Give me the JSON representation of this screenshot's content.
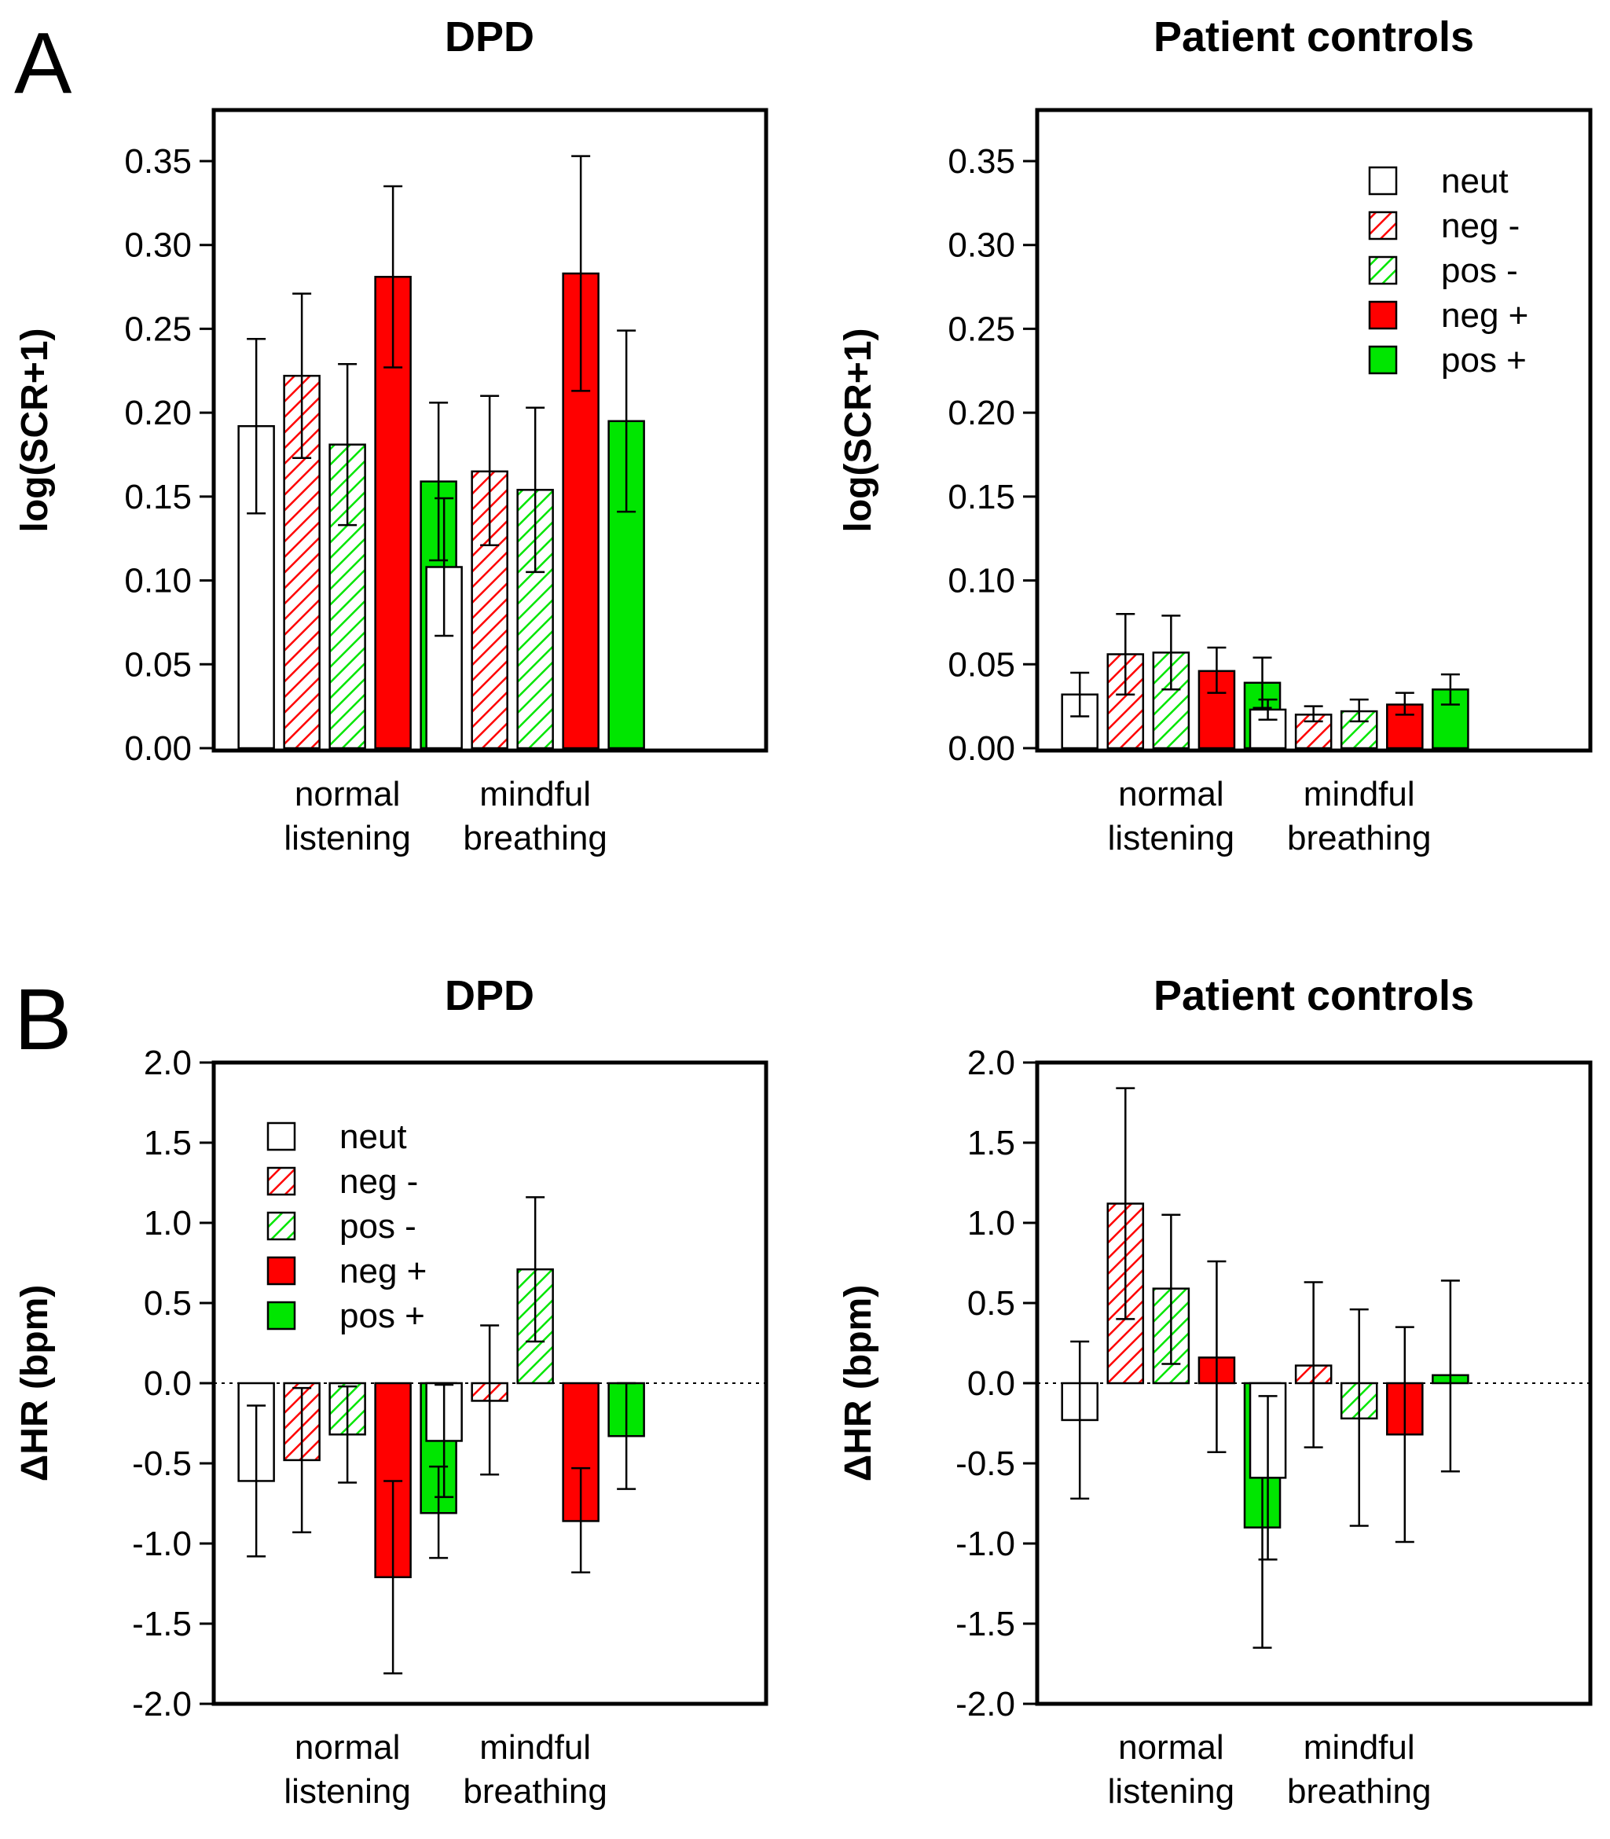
{
  "panel_letters": [
    "A",
    "B"
  ],
  "colors": {
    "neut": "#ffffff",
    "neg": "#ff0000",
    "pos": "#00e600",
    "axis": "#000000"
  },
  "legend": [
    {
      "key": "neut",
      "label": "neut",
      "fill": "plain"
    },
    {
      "key": "neg-",
      "label": "neg -",
      "fill": "hatch-red"
    },
    {
      "key": "pos-",
      "label": "pos -",
      "fill": "hatch-green"
    },
    {
      "key": "neg+",
      "label": "neg +",
      "fill": "solid-red"
    },
    {
      "key": "pos+",
      "label": "pos +",
      "fill": "solid-green"
    }
  ],
  "chart_data": [
    {
      "panel": "A",
      "type": "bar",
      "title": "DPD",
      "ylabel": "log(SCR+1)",
      "ylim": [
        0,
        0.38
      ],
      "yticks": [
        "0.00",
        "0.05",
        "0.10",
        "0.15",
        "0.20",
        "0.25",
        "0.30",
        "0.35"
      ],
      "yticks_values": [
        0,
        0.05,
        0.1,
        0.15,
        0.2,
        0.25,
        0.3,
        0.35
      ],
      "categories": [
        [
          "normal",
          "listening"
        ],
        [
          "mindful",
          "breathing"
        ]
      ],
      "legend": false,
      "series": [
        {
          "name": "neut",
          "values": [
            0.192,
            0.108
          ],
          "err_low": [
            0.14,
            0.067
          ],
          "err_high": [
            0.244,
            0.149
          ]
        },
        {
          "name": "neg -",
          "values": [
            0.222,
            0.165
          ],
          "err_low": [
            0.173,
            0.121
          ],
          "err_high": [
            0.271,
            0.21
          ]
        },
        {
          "name": "pos -",
          "values": [
            0.181,
            0.154
          ],
          "err_low": [
            0.133,
            0.105
          ],
          "err_high": [
            0.229,
            0.203
          ]
        },
        {
          "name": "neg +",
          "values": [
            0.281,
            0.283
          ],
          "err_low": [
            0.227,
            0.213
          ],
          "err_high": [
            0.335,
            0.353
          ]
        },
        {
          "name": "pos +",
          "values": [
            0.159,
            0.195
          ],
          "err_low": [
            0.112,
            0.141
          ],
          "err_high": [
            0.206,
            0.249
          ]
        }
      ]
    },
    {
      "panel": "A",
      "type": "bar",
      "title": "Patient controls",
      "ylabel": "log(SCR+1)",
      "ylim": [
        0,
        0.38
      ],
      "yticks": [
        "0.00",
        "0.05",
        "0.10",
        "0.15",
        "0.20",
        "0.25",
        "0.30",
        "0.35"
      ],
      "yticks_values": [
        0,
        0.05,
        0.1,
        0.15,
        0.2,
        0.25,
        0.3,
        0.35
      ],
      "categories": [
        [
          "normal",
          "listening"
        ],
        [
          "mindful",
          "breathing"
        ]
      ],
      "legend": true,
      "legend_position": "top-right",
      "series": [
        {
          "name": "neut",
          "values": [
            0.032,
            0.023
          ],
          "err_low": [
            0.019,
            0.017
          ],
          "err_high": [
            0.045,
            0.029
          ]
        },
        {
          "name": "neg -",
          "values": [
            0.056,
            0.02
          ],
          "err_low": [
            0.032,
            0.016
          ],
          "err_high": [
            0.08,
            0.025
          ]
        },
        {
          "name": "pos -",
          "values": [
            0.057,
            0.022
          ],
          "err_low": [
            0.035,
            0.016
          ],
          "err_high": [
            0.079,
            0.029
          ]
        },
        {
          "name": "neg +",
          "values": [
            0.046,
            0.026
          ],
          "err_low": [
            0.033,
            0.02
          ],
          "err_high": [
            0.06,
            0.033
          ]
        },
        {
          "name": "pos +",
          "values": [
            0.039,
            0.035
          ],
          "err_low": [
            0.024,
            0.026
          ],
          "err_high": [
            0.054,
            0.044
          ]
        }
      ]
    },
    {
      "panel": "B",
      "type": "bar",
      "title": "DPD",
      "ylabel": "ΔHR (bpm)",
      "ylim": [
        -2.0,
        2.0
      ],
      "yticks": [
        "-2.0",
        "-1.5",
        "-1.0",
        "-0.5",
        "0.0",
        "0.5",
        "1.0",
        "1.5",
        "2.0"
      ],
      "yticks_values": [
        -2.0,
        -1.5,
        -1.0,
        -0.5,
        0.0,
        0.5,
        1.0,
        1.5,
        2.0
      ],
      "categories": [
        [
          "normal",
          "listening"
        ],
        [
          "mindful",
          "breathing"
        ]
      ],
      "legend": true,
      "legend_position": "top-left",
      "zero_line": "dotted",
      "series": [
        {
          "name": "neut",
          "values": [
            -0.61,
            -0.36
          ],
          "err_low": [
            -1.08,
            -0.71
          ],
          "err_high": [
            -0.14,
            -0.01
          ]
        },
        {
          "name": "neg -",
          "values": [
            -0.48,
            -0.11
          ],
          "err_low": [
            -0.93,
            -0.57
          ],
          "err_high": [
            -0.03,
            0.36
          ]
        },
        {
          "name": "pos -",
          "values": [
            -0.32,
            0.71
          ],
          "err_low": [
            -0.62,
            0.26
          ],
          "err_high": [
            -0.02,
            1.16
          ]
        },
        {
          "name": "neg +",
          "values": [
            -1.21,
            -0.86
          ],
          "err_low": [
            -1.81,
            -1.18
          ],
          "err_high": [
            -0.61,
            -0.53
          ]
        },
        {
          "name": "pos +",
          "values": [
            -0.81,
            -0.33
          ],
          "err_low": [
            -1.09,
            -0.66
          ],
          "err_high": [
            -0.52,
            0.0
          ]
        }
      ]
    },
    {
      "panel": "B",
      "type": "bar",
      "title": "Patient controls",
      "ylabel": "ΔHR (bpm)",
      "ylim": [
        -2.0,
        2.0
      ],
      "yticks": [
        "-2.0",
        "-1.5",
        "-1.0",
        "-0.5",
        "0.0",
        "0.5",
        "1.0",
        "1.5",
        "2.0"
      ],
      "yticks_values": [
        -2.0,
        -1.5,
        -1.0,
        -0.5,
        0.0,
        0.5,
        1.0,
        1.5,
        2.0
      ],
      "categories": [
        [
          "normal",
          "listening"
        ],
        [
          "mindful",
          "breathing"
        ]
      ],
      "legend": false,
      "zero_line": "dotted",
      "series": [
        {
          "name": "neut",
          "values": [
            -0.23,
            -0.59
          ],
          "err_low": [
            -0.72,
            -1.1
          ],
          "err_high": [
            0.26,
            -0.08
          ]
        },
        {
          "name": "neg -",
          "values": [
            1.12,
            0.11
          ],
          "err_low": [
            0.4,
            -0.4
          ],
          "err_high": [
            1.84,
            0.63
          ]
        },
        {
          "name": "pos -",
          "values": [
            0.59,
            -0.22
          ],
          "err_low": [
            0.12,
            -0.89
          ],
          "err_high": [
            1.05,
            0.46
          ]
        },
        {
          "name": "neg +",
          "values": [
            0.16,
            -0.32
          ],
          "err_low": [
            -0.43,
            -0.99
          ],
          "err_high": [
            0.76,
            0.35
          ]
        },
        {
          "name": "pos +",
          "values": [
            -0.9,
            0.05
          ],
          "err_low": [
            -1.65,
            -0.55
          ],
          "err_high": [
            -0.14,
            0.64
          ]
        }
      ]
    }
  ]
}
